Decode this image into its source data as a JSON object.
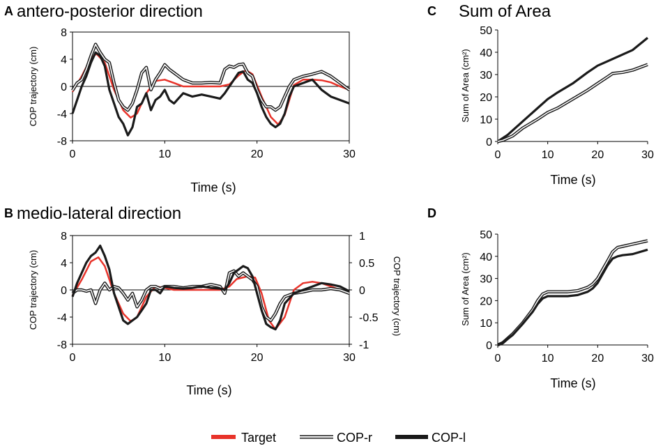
{
  "legend": {
    "target": "Target",
    "cop_r": "COP-r",
    "cop_l": "COP-l"
  },
  "colors": {
    "target": "#e8332a",
    "cop": "#1a1a1a",
    "axis": "#000000"
  },
  "chart_data": [
    {
      "id": "A",
      "type": "line",
      "panel_label": "A",
      "title": "antero-posterior direction",
      "xlabel": "Time (s)",
      "ylabel": "COP trajectory (cm)",
      "xlim": [
        0,
        30
      ],
      "ylim": [
        -8,
        8
      ],
      "xticks": [
        0,
        10,
        20,
        30
      ],
      "yticks": [
        8,
        4,
        0,
        -4,
        -8
      ],
      "zero_line": true,
      "series": [
        {
          "name": "Target",
          "style": "target",
          "x": [
            0,
            1,
            2,
            2.6,
            3.5,
            4.5,
            5.5,
            6.3,
            7,
            8,
            9,
            10,
            11,
            12,
            13,
            14,
            15,
            16,
            17,
            18,
            18.8,
            19.5,
            20.5,
            21.5,
            22.3,
            23,
            24,
            25,
            26,
            27,
            28,
            29,
            30
          ],
          "y": [
            -0.8,
            1.5,
            4.2,
            4.8,
            3.5,
            -0.5,
            -3.5,
            -4.6,
            -4.0,
            -1.0,
            0.8,
            1.0,
            0.5,
            0.0,
            0.0,
            0.0,
            0.0,
            0.0,
            0.3,
            1.6,
            2.4,
            1.8,
            -1.5,
            -4.5,
            -5.6,
            -4.2,
            0.2,
            1.0,
            1.0,
            0.9,
            0.6,
            0.0,
            -0.5
          ]
        },
        {
          "name": "COP-r",
          "style": "double",
          "x": [
            0,
            0.5,
            1,
            1.5,
            2,
            2.5,
            3,
            3.5,
            4,
            4.5,
            5,
            5.5,
            6,
            6.5,
            7,
            7.5,
            8,
            8.5,
            9,
            9.5,
            10,
            10.5,
            11,
            12,
            13,
            14,
            15,
            16,
            16.5,
            17,
            17.5,
            18,
            18.5,
            19,
            19.5,
            20,
            20.5,
            21,
            21.5,
            22,
            22.5,
            23,
            23.5,
            24,
            25,
            26,
            27,
            28,
            29,
            30
          ],
          "y": [
            -0.6,
            0.5,
            1.0,
            2.5,
            4.5,
            6.2,
            5.0,
            4.0,
            3.5,
            0.5,
            -2.0,
            -3.0,
            -3.5,
            -2.5,
            -0.5,
            2.0,
            2.8,
            -0.5,
            1.0,
            2.0,
            3.2,
            2.5,
            2.0,
            1.0,
            0.5,
            0.5,
            0.6,
            0.5,
            2.5,
            3.0,
            2.8,
            3.2,
            3.3,
            2.0,
            1.5,
            -0.5,
            -2.0,
            -3.0,
            -3.0,
            -3.5,
            -3.0,
            -1.5,
            0.0,
            1.0,
            1.5,
            1.8,
            2.2,
            1.5,
            0.5,
            -0.5
          ]
        },
        {
          "name": "COP-l",
          "style": "thick",
          "x": [
            0,
            0.5,
            1,
            1.5,
            2,
            2.5,
            3,
            3.5,
            4,
            4.5,
            5,
            5.5,
            6,
            6.5,
            7,
            7.5,
            8,
            8.5,
            9,
            9.5,
            10,
            10.5,
            11,
            12,
            13,
            14,
            15,
            16,
            16.5,
            17,
            17.5,
            18,
            18.5,
            19,
            19.5,
            20,
            20.5,
            21,
            21.5,
            22,
            22.5,
            23,
            23.5,
            24,
            25,
            26,
            27,
            28,
            29,
            30
          ],
          "y": [
            -4.0,
            -2.0,
            0.0,
            1.5,
            3.5,
            5.0,
            4.5,
            3.0,
            -0.5,
            -2.5,
            -4.5,
            -5.5,
            -7.2,
            -6.0,
            -3.0,
            -2.5,
            -1.0,
            -3.5,
            -2.0,
            -1.5,
            -0.5,
            -2.0,
            -2.5,
            -1.0,
            -1.5,
            -1.2,
            -1.5,
            -1.8,
            -1.0,
            0.0,
            1.0,
            2.0,
            2.2,
            1.0,
            0.5,
            -1.0,
            -3.0,
            -4.5,
            -5.5,
            -6.0,
            -5.5,
            -4.0,
            -1.5,
            0.0,
            0.5,
            1.0,
            -0.5,
            -1.5,
            -2.0,
            -2.5
          ]
        }
      ]
    },
    {
      "id": "B",
      "type": "line",
      "panel_label": "B",
      "title": "medio-lateral direction",
      "xlabel": "Time (s)",
      "ylabel": "COP trajectory (cm)",
      "ylabel_right": "COP trajectory (cm)",
      "xlim": [
        0,
        30
      ],
      "ylim": [
        -8,
        8
      ],
      "ylim_right": [
        -1,
        1
      ],
      "xticks": [
        0,
        10,
        20,
        30
      ],
      "yticks": [
        8,
        4,
        0,
        -4,
        -8
      ],
      "yticks_right": [
        "1",
        "0.5",
        "0",
        "-0.5",
        "-1"
      ],
      "zero_line": true,
      "series": [
        {
          "name": "Target",
          "style": "target",
          "x": [
            0,
            1,
            2,
            2.8,
            3.5,
            4.5,
            5.5,
            6.3,
            7,
            8,
            9,
            10,
            11,
            12,
            13,
            14,
            15,
            16,
            17,
            17.8,
            19,
            19.8,
            20.5,
            21.3,
            22,
            23,
            24,
            25,
            26,
            27,
            28,
            29,
            30
          ],
          "y": [
            -0.8,
            1.5,
            4.2,
            4.8,
            3.5,
            -0.5,
            -3.5,
            -4.6,
            -4.0,
            -1.0,
            0.5,
            0.3,
            0.0,
            0.0,
            0.0,
            0.0,
            0.0,
            0.0,
            0.5,
            1.6,
            2.0,
            1.8,
            -0.5,
            -4.5,
            -5.8,
            -4.0,
            0.0,
            1.0,
            1.2,
            1.0,
            0.5,
            0.0,
            -0.5
          ]
        },
        {
          "name": "COP-r",
          "style": "double",
          "x": [
            0,
            0.5,
            1,
            1.5,
            2,
            2.5,
            3,
            3.5,
            4,
            4.5,
            5,
            5.5,
            6,
            6.5,
            7,
            7.5,
            8,
            8.5,
            9,
            9.5,
            10,
            11,
            12,
            13,
            14,
            15,
            16,
            16.5,
            17,
            17.5,
            18,
            18.5,
            19,
            19.5,
            20,
            20.5,
            21,
            21.5,
            22,
            22.5,
            23,
            24,
            25,
            26,
            27,
            28,
            29,
            30
          ],
          "y": [
            -0.5,
            0.0,
            0.0,
            -0.2,
            0.0,
            -2.0,
            0.0,
            1.0,
            0.0,
            0.5,
            0.3,
            -0.5,
            -1.5,
            -0.5,
            -2.5,
            -1.5,
            0.0,
            0.5,
            0.5,
            0.2,
            0.5,
            0.5,
            0.3,
            0.5,
            0.5,
            0.8,
            0.5,
            -0.5,
            2.5,
            2.8,
            2.0,
            2.5,
            2.0,
            1.5,
            0.5,
            -2.5,
            -4.0,
            -4.5,
            -3.5,
            -2.0,
            -1.0,
            -0.5,
            -0.3,
            0.0,
            0.0,
            0.2,
            0.0,
            -0.5
          ]
        },
        {
          "name": "COP-l",
          "style": "thick",
          "x": [
            0,
            0.5,
            1,
            1.5,
            2,
            2.5,
            3,
            3.5,
            4,
            4.5,
            5,
            5.5,
            6,
            6.5,
            7,
            7.5,
            8,
            8.5,
            9,
            9.5,
            10,
            11,
            12,
            13,
            14,
            15,
            16,
            16.5,
            17,
            17.5,
            18,
            18.5,
            19,
            19.5,
            20,
            20.5,
            21,
            21.5,
            22,
            22.5,
            23,
            24,
            25,
            26,
            27,
            28,
            29,
            30
          ],
          "y": [
            -1.0,
            1.0,
            2.5,
            4.0,
            5.0,
            5.5,
            6.5,
            5.0,
            3.0,
            -0.5,
            -2.5,
            -4.5,
            -5.0,
            -4.5,
            -4.0,
            -3.0,
            -2.0,
            0.0,
            0.0,
            -0.5,
            0.5,
            0.3,
            0.2,
            0.3,
            0.5,
            0.3,
            0.2,
            0.0,
            1.0,
            2.5,
            3.0,
            3.5,
            3.2,
            2.0,
            -0.5,
            -3.0,
            -5.0,
            -5.5,
            -5.8,
            -4.5,
            -2.0,
            -0.5,
            0.0,
            0.5,
            1.0,
            0.8,
            0.5,
            -0.2
          ]
        }
      ]
    },
    {
      "id": "C",
      "type": "line",
      "panel_label": "C",
      "title": "Sum of Area",
      "xlabel": "Time (s)",
      "ylabel": "Sum of Area (cm²)",
      "xlim": [
        0,
        30
      ],
      "ylim": [
        0,
        50
      ],
      "xticks": [
        0,
        10,
        20,
        30
      ],
      "yticks": [
        50,
        40,
        30,
        20,
        10,
        0
      ],
      "zero_line": false,
      "series": [
        {
          "name": "COP-l",
          "style": "thick",
          "x": [
            0,
            2,
            5,
            8,
            10,
            12,
            15,
            18,
            20,
            22,
            25,
            27,
            30
          ],
          "y": [
            0,
            3,
            9,
            15,
            19,
            22,
            26,
            31,
            34,
            36,
            39,
            41,
            46.5
          ]
        },
        {
          "name": "COP-r",
          "style": "double",
          "x": [
            0,
            1,
            2,
            3,
            5,
            8,
            10,
            12,
            15,
            18,
            20,
            22,
            23,
            25,
            27,
            30
          ],
          "y": [
            0,
            0.5,
            1.5,
            2.5,
            6,
            10,
            13,
            15,
            19,
            23,
            26,
            29,
            30.5,
            31,
            32,
            34.5
          ]
        }
      ]
    },
    {
      "id": "D",
      "type": "line",
      "panel_label": "D",
      "title": "",
      "xlabel": "Time (s)",
      "ylabel": "Sum of Area (cm²)",
      "xlim": [
        0,
        30
      ],
      "ylim": [
        0,
        50
      ],
      "xticks": [
        0,
        10,
        20,
        30
      ],
      "yticks": [
        50,
        40,
        30,
        20,
        10,
        0
      ],
      "zero_line": false,
      "series": [
        {
          "name": "COP-r",
          "style": "double",
          "x": [
            0,
            1,
            3,
            5,
            7,
            8,
            9,
            10,
            12,
            14,
            16,
            18,
            19,
            20,
            21,
            22,
            23,
            24,
            25,
            27,
            30
          ],
          "y": [
            0,
            1,
            5,
            10,
            16,
            20,
            23,
            24,
            24,
            24,
            24.5,
            26,
            27.5,
            30,
            34,
            38,
            42,
            44,
            44.5,
            45.5,
            47
          ]
        },
        {
          "name": "COP-l",
          "style": "thick",
          "x": [
            0,
            1,
            3,
            5,
            7,
            8,
            9,
            10,
            12,
            14,
            16,
            18,
            19,
            20,
            21,
            22,
            23,
            24,
            25,
            27,
            30
          ],
          "y": [
            0,
            1,
            4.5,
            9.5,
            15,
            18.5,
            21,
            22,
            22,
            22,
            22.5,
            24,
            25.5,
            28,
            32,
            36,
            39,
            40,
            40.5,
            41,
            43
          ]
        }
      ]
    }
  ]
}
